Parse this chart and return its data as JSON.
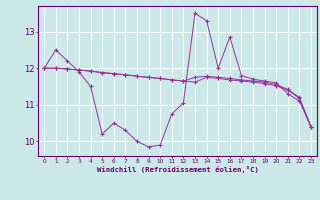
{
  "xlabel": "Windchill (Refroidissement éolien,°C)",
  "background_color": "#cce8e8",
  "line_color": "#993399",
  "grid_color": "#aad4d4",
  "xlim": [
    -0.5,
    23.5
  ],
  "ylim": [
    9.6,
    13.7
  ],
  "yticks": [
    10,
    11,
    12,
    13
  ],
  "xticks": [
    0,
    1,
    2,
    3,
    4,
    5,
    6,
    7,
    8,
    9,
    10,
    11,
    12,
    13,
    14,
    15,
    16,
    17,
    18,
    19,
    20,
    21,
    22,
    23
  ],
  "series1_x": [
    0,
    1,
    2,
    3,
    4,
    5,
    6,
    7,
    8,
    9,
    10,
    11,
    12,
    13,
    14,
    15,
    16,
    17,
    18,
    19,
    20,
    21,
    22,
    23
  ],
  "series1_y": [
    12.0,
    12.5,
    12.2,
    11.9,
    11.5,
    10.2,
    10.5,
    10.3,
    10.0,
    9.85,
    9.9,
    10.75,
    11.05,
    13.5,
    13.3,
    12.0,
    12.85,
    11.8,
    11.7,
    11.65,
    11.6,
    11.3,
    11.1,
    10.4
  ],
  "series2_x": [
    0,
    1,
    2,
    3,
    4,
    5,
    6,
    7,
    8,
    9,
    10,
    11,
    12,
    13,
    14,
    15,
    16,
    17,
    18,
    19,
    20,
    21,
    22,
    23
  ],
  "series2_y": [
    12.0,
    12.0,
    11.98,
    11.95,
    11.92,
    11.88,
    11.85,
    11.82,
    11.78,
    11.75,
    11.72,
    11.68,
    11.65,
    11.75,
    11.78,
    11.75,
    11.72,
    11.68,
    11.65,
    11.62,
    11.55,
    11.42,
    11.2,
    10.4
  ],
  "series3_x": [
    0,
    1,
    2,
    3,
    4,
    5,
    6,
    7,
    8,
    9,
    10,
    11,
    12,
    13,
    14,
    15,
    16,
    17,
    18,
    19,
    20,
    21,
    22,
    23
  ],
  "series3_y": [
    12.0,
    12.0,
    11.98,
    11.95,
    11.92,
    11.88,
    11.85,
    11.82,
    11.78,
    11.75,
    11.72,
    11.68,
    11.65,
    11.62,
    11.75,
    11.72,
    11.68,
    11.65,
    11.62,
    11.58,
    11.52,
    11.4,
    11.18,
    10.38
  ]
}
